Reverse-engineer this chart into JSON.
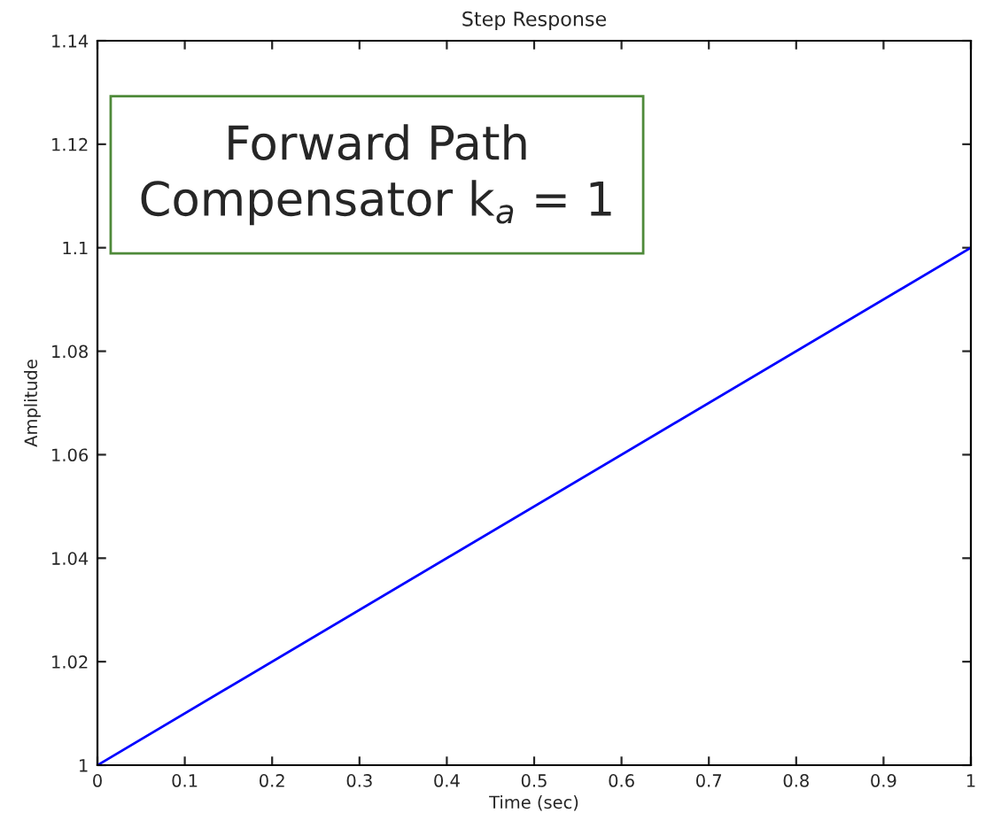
{
  "chart_data": {
    "type": "line",
    "title": "Step Response",
    "xlabel": "Time (sec)",
    "ylabel": "Amplitude",
    "x": [
      0,
      1
    ],
    "series": [
      {
        "color": "#0000ff",
        "values": [
          1,
          1.1
        ]
      }
    ],
    "xlim": [
      0,
      1
    ],
    "ylim": [
      1,
      1.14
    ],
    "xticks": [
      0,
      0.1,
      0.2,
      0.3,
      0.4,
      0.5,
      0.6,
      0.7,
      0.8,
      0.9,
      1
    ],
    "yticks": [
      1,
      1.02,
      1.04,
      1.06,
      1.08,
      1.1,
      1.12,
      1.14
    ],
    "grid": false,
    "annotations": [
      "Forward Path\nCompensator k$_{a}$ = 1"
    ]
  }
}
